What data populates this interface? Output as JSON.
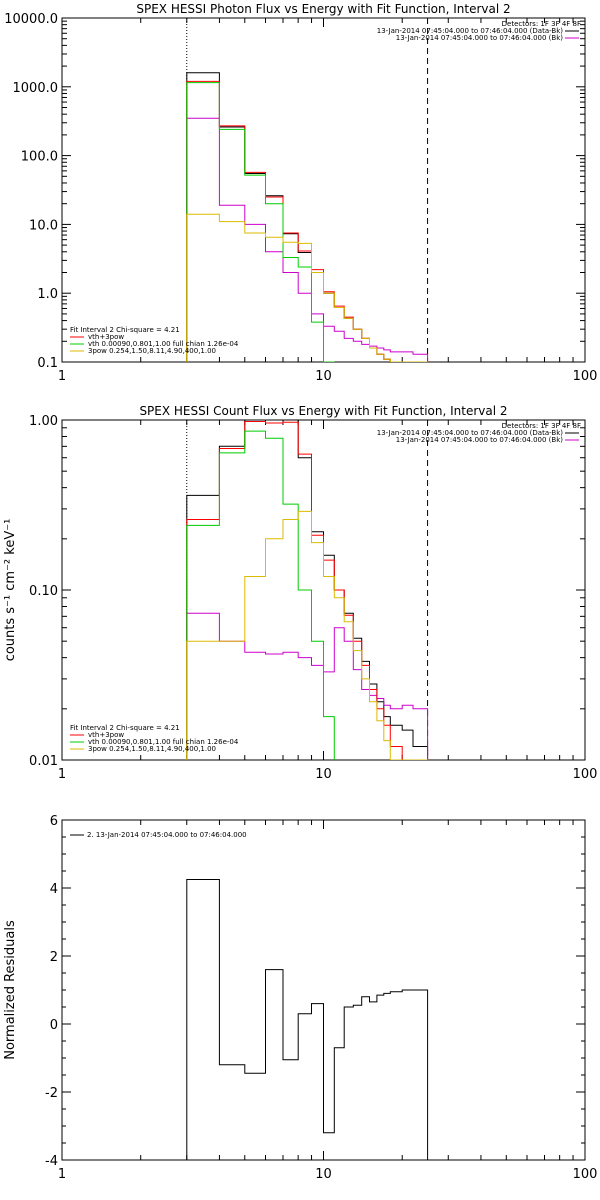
{
  "chart_data": [
    {
      "type": "line",
      "title": "SPEX HESSI Photon Flux vs Energy with Fit Function, Interval 2",
      "xlabel": "",
      "ylabel": "",
      "xscale": "log",
      "yscale": "log",
      "xlim": [
        1,
        100
      ],
      "ylim": [
        0.1,
        10000
      ],
      "xticks": [
        "1",
        "10",
        "100"
      ],
      "yticks": [
        "0.1",
        "1.0",
        "10.0",
        "100.0",
        "1000.0",
        "10000.0"
      ],
      "vlines": [
        {
          "x": 3,
          "style": "dotted"
        },
        {
          "x": 25,
          "style": "dashed"
        }
      ],
      "legend_top": [
        "Detectors: 1F 3F 4F 8F",
        "13-Jan-2014 07:45:04.000 to 07:46:04.000 (Data-Bk)",
        "13-Jan-2014 07:45:04.000 to 07:46:04.000 (Bk)"
      ],
      "legend_bottom": [
        "Fit Interval 2   Chi-square = 4.21",
        "vth+3pow",
        "vth 0.00090,0.801,1.00   full chian 1.26e-04",
        "3pow 0.254,1.50,8.11,4.90,400,1.00"
      ],
      "bin_edges": [
        3,
        4,
        5,
        6,
        7,
        8,
        9,
        10,
        11,
        12,
        13,
        14,
        15,
        16,
        17,
        18,
        20,
        22,
        25
      ],
      "series": [
        {
          "name": "Data-Bk",
          "color": "#000000",
          "values": [
            1600,
            260,
            55,
            26,
            7.3,
            3.9,
            2.0,
            1.0,
            0.62,
            0.43,
            0.3,
            0.22,
            0.16,
            0.13,
            0.11,
            0.1,
            0.1,
            0.1
          ]
        },
        {
          "name": "Bk",
          "color": "#cc00cc",
          "values": [
            350,
            19,
            10,
            4.0,
            2.0,
            1.0,
            0.5,
            0.33,
            0.28,
            0.22,
            0.2,
            0.18,
            0.17,
            0.16,
            0.15,
            0.14,
            0.14,
            0.13
          ]
        },
        {
          "name": "vth+3pow",
          "color": "#ff0000",
          "values": [
            1200,
            270,
            57,
            25,
            7.5,
            4.1,
            2.2,
            1.05,
            0.65,
            0.45,
            0.3,
            0.22,
            0.16,
            0.13,
            0.11,
            0.1,
            0.09,
            0.08
          ]
        },
        {
          "name": "vth",
          "color": "#00cc00",
          "values": [
            1150,
            240,
            52,
            20,
            3.3,
            2.4,
            0.38,
            0.1
          ]
        },
        {
          "name": "3pow",
          "color": "#ddbb00",
          "values": [
            14,
            11,
            7.5,
            6.5,
            5.5,
            5.3,
            2.0,
            1.0,
            0.62,
            0.43,
            0.3,
            0.22,
            0.16,
            0.13,
            0.11,
            0.1,
            0.1,
            0.1
          ]
        }
      ]
    },
    {
      "type": "line",
      "title": "SPEX HESSI Count Flux vs Energy with Fit Function, Interval 2",
      "xlabel": "",
      "ylabel": "counts s⁻¹ cm⁻² keV⁻¹",
      "xscale": "log",
      "yscale": "log",
      "xlim": [
        1,
        100
      ],
      "ylim": [
        0.01,
        1.0
      ],
      "xticks": [
        "1",
        "10",
        "100"
      ],
      "yticks": [
        "0.01",
        "0.10",
        "1.00"
      ],
      "vlines": [
        {
          "x": 3,
          "style": "dotted"
        },
        {
          "x": 25,
          "style": "dashed"
        }
      ],
      "legend_top": [
        "Detectors: 1F 3F 4F 8F",
        "13-Jan-2014 07:45:04.000 to 07:46:04.000 (Data-Bk)",
        "13-Jan-2014 07:45:04.000 to 07:46:04.000 (Bk)"
      ],
      "legend_bottom": [
        "Fit Interval 2   Chi-square = 4.21",
        "vth+3pow",
        "vth 0.00090,0.801,1.00   full chian 1.26e-04",
        "3pow 0.254,1.50,8.11,4.90,400,1.00"
      ],
      "bin_edges": [
        3,
        4,
        5,
        6,
        7,
        8,
        9,
        10,
        11,
        12,
        13,
        14,
        15,
        16,
        17,
        18,
        20,
        22,
        25
      ],
      "series": [
        {
          "name": "Data-Bk",
          "color": "#000000",
          "values": [
            0.36,
            0.7,
            1.0,
            1.0,
            1.0,
            0.6,
            0.22,
            0.16,
            0.1,
            0.073,
            0.052,
            0.038,
            0.028,
            0.022,
            0.018,
            0.016,
            0.015,
            0.012
          ]
        },
        {
          "name": "Bk",
          "color": "#cc00cc",
          "values": [
            0.073,
            0.05,
            0.043,
            0.042,
            0.043,
            0.04,
            0.036,
            0.033,
            0.06,
            0.05,
            0.034,
            0.026,
            0.024,
            0.023,
            0.021,
            0.02,
            0.021,
            0.02
          ]
        },
        {
          "name": "vth+3pow",
          "color": "#ff0000",
          "values": [
            0.26,
            0.68,
            0.98,
            0.96,
            0.97,
            0.63,
            0.21,
            0.15,
            0.1,
            0.071,
            0.05,
            0.036,
            0.026,
            0.02,
            0.016,
            0.012,
            0.01,
            0.01
          ]
        },
        {
          "name": "vth",
          "color": "#00cc00",
          "values": [
            0.24,
            0.64,
            0.86,
            0.78,
            0.32,
            0.1,
            0.05,
            0.018
          ]
        },
        {
          "name": "3pow",
          "color": "#ddbb00",
          "values": [
            0.05,
            0.05,
            0.12,
            0.2,
            0.26,
            0.29,
            0.19,
            0.12,
            0.09,
            0.065,
            0.044,
            0.03,
            0.022,
            0.017,
            0.013,
            0.01,
            0.01,
            0.01
          ]
        }
      ]
    },
    {
      "type": "line",
      "title": "",
      "xlabel": "",
      "ylabel": "Normalized Residuals",
      "xscale": "log",
      "yscale": "linear",
      "xlim": [
        1,
        100
      ],
      "ylim": [
        -4,
        6
      ],
      "xticks": [
        "1",
        "10",
        "100"
      ],
      "yticks": [
        "-4",
        "-2",
        "0",
        "2",
        "4",
        "6"
      ],
      "legend_top": [
        "2. 13-Jan-2014 07:45:04.000 to 07:46:04.000"
      ],
      "bin_edges": [
        3,
        4,
        5,
        6,
        7,
        7.5,
        8,
        9,
        10,
        11,
        12,
        13,
        14,
        15,
        16,
        17,
        18,
        20,
        22,
        25
      ],
      "series": [
        {
          "name": "2. 13-Jan-2014 07:45:04.000 to 07:46:04.000",
          "color": "#000000",
          "values": [
            4.25,
            -1.2,
            -1.45,
            1.6,
            -1.05,
            -1.05,
            0.3,
            0.6,
            -3.2,
            -0.7,
            0.5,
            0.55,
            0.8,
            0.65,
            0.85,
            0.9,
            0.95,
            1.0,
            1.0
          ]
        }
      ]
    }
  ]
}
